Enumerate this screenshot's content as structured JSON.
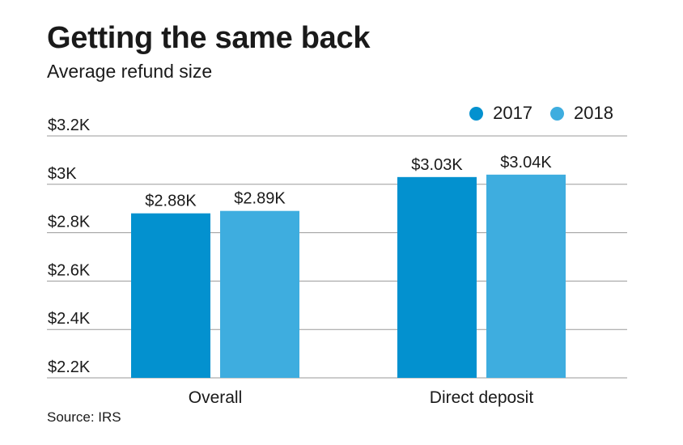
{
  "chart_data": {
    "type": "bar",
    "title": "Getting the same back",
    "subtitle": "Average refund size",
    "categories": [
      "Overall",
      "Direct deposit"
    ],
    "series": [
      {
        "name": "2017",
        "color": "#0391cf",
        "values": [
          2.88,
          3.03
        ],
        "labels": [
          "$2.88K",
          "$3.03K"
        ]
      },
      {
        "name": "2018",
        "color": "#3eaddf",
        "values": [
          2.89,
          3.04
        ],
        "labels": [
          "$2.89K",
          "$3.04K"
        ]
      }
    ],
    "ylim": [
      2.2,
      3.2
    ],
    "yticks": [
      {
        "value": 3.2,
        "label": "$3.2K"
      },
      {
        "value": 3.0,
        "label": "$3K"
      },
      {
        "value": 2.8,
        "label": "$2.8K"
      },
      {
        "value": 2.6,
        "label": "$2.6K"
      },
      {
        "value": 2.4,
        "label": "$2.4K"
      },
      {
        "value": 2.2,
        "label": "$2.2K"
      }
    ],
    "xlabel": "",
    "ylabel": "",
    "grid": true,
    "legend_position": "top-right",
    "source": "Source: IRS"
  }
}
